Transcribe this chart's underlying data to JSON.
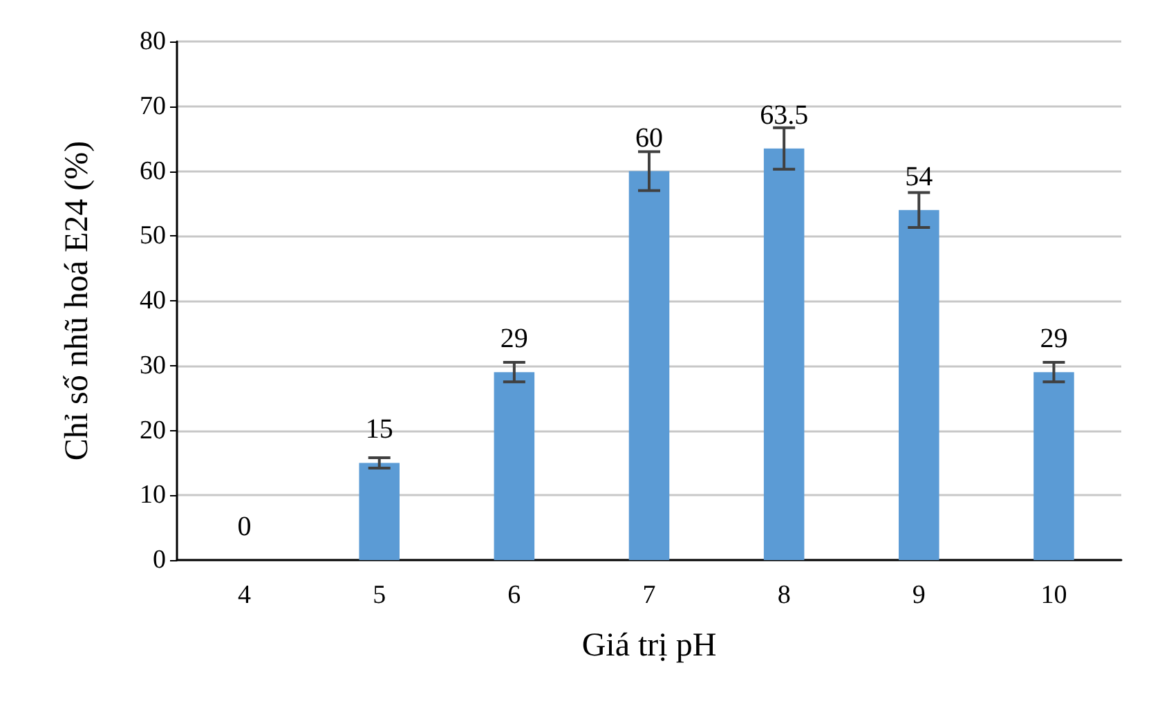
{
  "chart_data": {
    "type": "bar",
    "xlabel": "Giá trị pH",
    "ylabel": "Chỉ số nhũ hoá E24 (%)",
    "categories": [
      "4",
      "5",
      "6",
      "7",
      "8",
      "9",
      "10"
    ],
    "values": [
      0,
      15,
      29,
      60,
      63.5,
      54,
      29
    ],
    "errors": [
      null,
      0.8,
      1.5,
      3,
      3.2,
      2.7,
      1.5
    ],
    "color": "#5b9bd5",
    "ylim": [
      0,
      80
    ],
    "yticks": [
      0,
      10,
      20,
      30,
      40,
      50,
      60,
      70,
      80
    ],
    "grid": "y",
    "data_labels": true
  }
}
